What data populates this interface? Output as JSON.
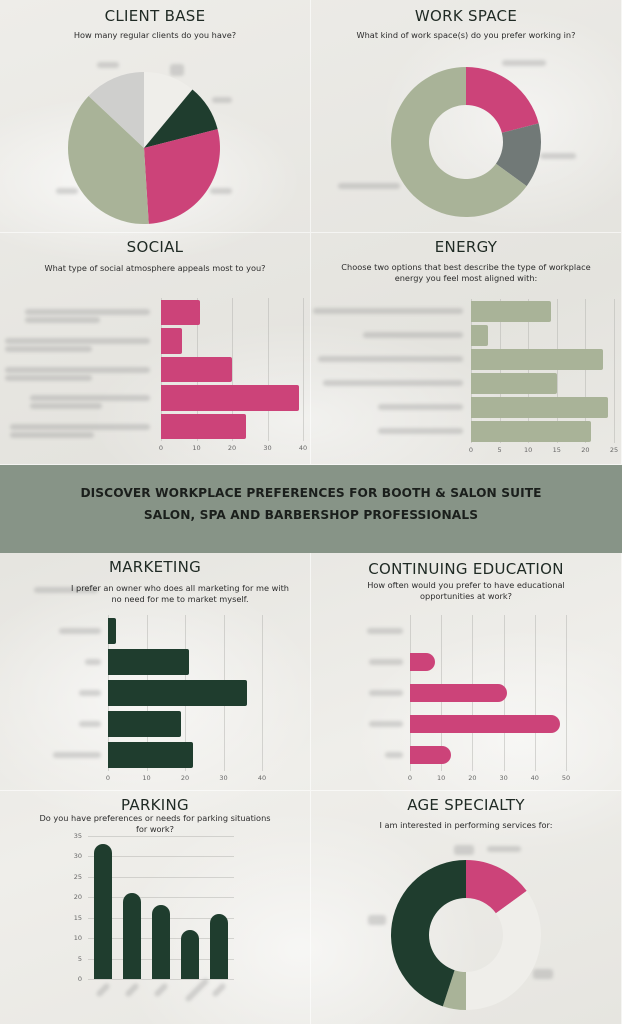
{
  "banner": {
    "line1": "DISCOVER WORKPLACE PREFERENCES FOR BOOTH & SALON SUITE",
    "line2": "SALON, SPA AND BARBERSHOP PROFESSIONALS",
    "background": "#879487"
  },
  "colors": {
    "pink": "#cc4379",
    "sage": "#a9b398",
    "dark_green": "#1f3d2e",
    "light_gray": "#cfcfcd",
    "slate": "#717977",
    "off_white": "#efeeea"
  },
  "panels": {
    "client_base": {
      "title": "CLIENT BASE",
      "subtitle": "How many regular clients do you have?"
    },
    "work_space": {
      "title": "WORK SPACE",
      "subtitle": "What kind of work space(s) do you prefer working in?"
    },
    "social": {
      "title": "SOCIAL",
      "subtitle": "What type of social atmosphere appeals most to you?",
      "ticks": [
        "0",
        "10",
        "20",
        "30",
        "40"
      ]
    },
    "energy": {
      "title": "ENERGY",
      "subtitle": "Choose two options that best describe the type of workplace energy you feel most aligned with:",
      "ticks": [
        "0",
        "5",
        "10",
        "15",
        "20",
        "25"
      ]
    },
    "marketing": {
      "title": "MARKETING",
      "subtitle": "I prefer an owner who does all marketing for me with no need for me to market myself.",
      "ticks": [
        "0",
        "10",
        "20",
        "30",
        "40"
      ]
    },
    "continuing_education": {
      "title": "CONTINUING EDUCATION",
      "subtitle": "How often would you prefer to have educational opportunities at work?",
      "ticks": [
        "0",
        "10",
        "20",
        "30",
        "40",
        "50"
      ]
    },
    "parking": {
      "title": "PARKING",
      "subtitle": "Do you have preferences or needs for parking situations for work?",
      "ticks": [
        "0",
        "5",
        "10",
        "15",
        "20",
        "25",
        "30",
        "35"
      ]
    },
    "age_specialty": {
      "title": "AGE SPECIALTY",
      "subtitle": "I am interested in performing services for:"
    }
  },
  "chart_data": [
    {
      "type": "pie",
      "title": "CLIENT BASE",
      "subtitle": "How many regular clients do you have?",
      "categories": [
        "(blurred label 1)",
        "(blurred label 2)",
        "(blurred label 3)",
        "(blurred label 4)",
        "(blurred label 5)"
      ],
      "series": [
        {
          "name": "share",
          "values": [
            11,
            10,
            28,
            38,
            13
          ]
        }
      ],
      "slice_colors": [
        "#efeeea",
        "#1f3d2e",
        "#cc4379",
        "#a9b398",
        "#cfcfcd"
      ],
      "legend": "labels blurred"
    },
    {
      "type": "pie",
      "subtype": "donut",
      "title": "WORK SPACE",
      "subtitle": "What kind of work space(s) do you prefer working in?",
      "categories": [
        "(blurred label 1)",
        "(blurred label 2)",
        "(blurred label 3)"
      ],
      "series": [
        {
          "name": "share",
          "values": [
            21,
            14,
            65
          ]
        }
      ],
      "slice_colors": [
        "#cc4379",
        "#717977",
        "#a9b398"
      ]
    },
    {
      "type": "bar",
      "orientation": "horizontal",
      "title": "SOCIAL",
      "subtitle": "What type of social atmosphere appeals most to you?",
      "categories": [
        "(blurred)",
        "(blurred)",
        "(blurred)",
        "(blurred)",
        "(blurred)"
      ],
      "values": [
        11,
        6,
        20,
        39,
        24
      ],
      "xlim": [
        0,
        40
      ],
      "xticks": [
        0,
        10,
        20,
        30,
        40
      ],
      "grid": true,
      "color": "#cc4379"
    },
    {
      "type": "bar",
      "orientation": "horizontal",
      "title": "ENERGY",
      "subtitle": "Choose two options that best describe the type of workplace energy you feel most aligned with:",
      "categories": [
        "(blurred)",
        "(blurred)",
        "(blurred)",
        "(blurred)",
        "(blurred)",
        "(blurred)"
      ],
      "values": [
        14,
        3,
        23,
        15,
        24,
        21
      ],
      "xlim": [
        0,
        25
      ],
      "xticks": [
        0,
        5,
        10,
        15,
        20,
        25
      ],
      "grid": true,
      "color": "#a9b398"
    },
    {
      "type": "bar",
      "orientation": "horizontal",
      "title": "MARKETING",
      "subtitle": "I prefer an owner who does all marketing for me with no need for me to market myself.",
      "categories": [
        "(blurred)",
        "(blurred)",
        "(blurred)",
        "(blurred)",
        "(blurred)"
      ],
      "values": [
        2,
        21,
        36,
        19,
        22
      ],
      "xlim": [
        0,
        40
      ],
      "xticks": [
        0,
        10,
        20,
        30,
        40
      ],
      "grid": true,
      "color": "#1f3d2e"
    },
    {
      "type": "bar",
      "orientation": "horizontal",
      "title": "CONTINUING EDUCATION",
      "subtitle": "How often would you prefer to have educational opportunities at work?",
      "categories": [
        "(blurred)",
        "(blurred)",
        "(blurred)",
        "(blurred)",
        "(blurred)"
      ],
      "values": [
        0,
        8,
        31,
        48,
        13
      ],
      "xlim": [
        0,
        50
      ],
      "xticks": [
        0,
        10,
        20,
        30,
        40,
        50
      ],
      "grid": true,
      "color": "#cc4379"
    },
    {
      "type": "bar",
      "orientation": "vertical",
      "title": "PARKING",
      "subtitle": "Do you have preferences or needs for parking situations for work?",
      "categories": [
        "(blurred)",
        "(blurred)",
        "(blurred)",
        "(blurred)",
        "(blurred)"
      ],
      "values": [
        33,
        21,
        18,
        12,
        16
      ],
      "ylim": [
        0,
        35
      ],
      "yticks": [
        0,
        5,
        10,
        15,
        20,
        25,
        30,
        35
      ],
      "grid": true,
      "color": "#1f3d2e"
    },
    {
      "type": "pie",
      "subtype": "donut",
      "title": "AGE SPECIALTY",
      "subtitle": "I am interested in performing services for:",
      "categories": [
        "(blurred label 1)",
        "(blurred label 2)",
        "(blurred label 3)",
        "(blurred label 4)"
      ],
      "series": [
        {
          "name": "share",
          "values": [
            15,
            35,
            5,
            45
          ]
        }
      ],
      "slice_colors": [
        "#cc4379",
        "#efeeea",
        "#a9b398",
        "#1f3d2e"
      ]
    }
  ]
}
